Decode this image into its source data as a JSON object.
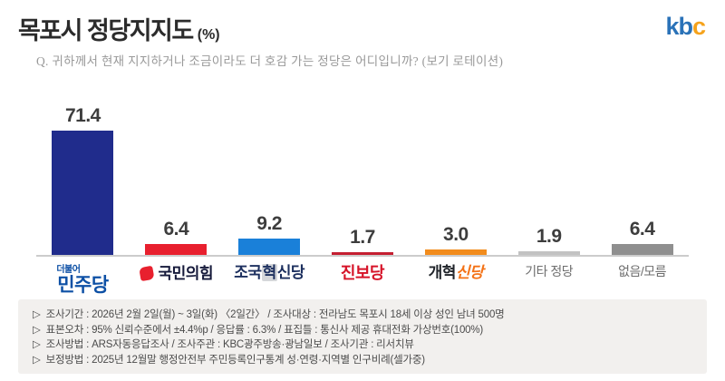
{
  "header": {
    "title": "목포시 정당지지도",
    "unit": "(%)",
    "logo_letters": [
      {
        "char": "k",
        "color": "#2a72b8"
      },
      {
        "char": "b",
        "color": "#2a72b8"
      },
      {
        "char": "c",
        "color": "#f5a21b"
      }
    ]
  },
  "question": "Q. 귀하께서 현재 지지하거나 조금이라도 더 호감 가는 정당은 어디입니까? (보기 로테이션)",
  "chart_data": {
    "type": "bar",
    "title": "목포시 정당지지도 (%)",
    "categories": [
      "더불어민주당",
      "국민의힘",
      "조국혁신당",
      "진보당",
      "개혁신당",
      "기타 정당",
      "없음/모름"
    ],
    "values": [
      71.4,
      6.4,
      9.2,
      1.7,
      3.0,
      1.9,
      6.4
    ],
    "value_labels": [
      "71.4",
      "6.4",
      "9.2",
      "1.7",
      "3.0",
      "1.9",
      "6.4"
    ],
    "bar_colors": [
      "#202c8c",
      "#e8202e",
      "#1a80d9",
      "#c41f31",
      "#f28c1d",
      "#c2c2c2",
      "#8f8f8f"
    ],
    "ylim": [
      0,
      80
    ],
    "grid": false,
    "legend": "none"
  },
  "bars": [
    {
      "value": "71.4",
      "color": "#202c8c",
      "pre_label": "더불어",
      "label_parts": [
        {
          "text": "민주당",
          "color": "#0d50a5"
        }
      ],
      "label_size": 21,
      "label_weight": 800
    },
    {
      "value": "6.4",
      "color": "#e8202e",
      "icon": "ppp-logo",
      "icon_color": "#e8202e",
      "label_parts": [
        {
          "text": "국민의힘",
          "color": "#15193a"
        }
      ],
      "label_size": 17,
      "label_weight": 800
    },
    {
      "value": "9.2",
      "color": "#1a80d9",
      "label_parts": [
        {
          "text": "조국",
          "color": "#1c2f5e"
        },
        {
          "text": "혁",
          "color": "#1c2f5e",
          "bg": "#d5d7da"
        },
        {
          "text": "신당",
          "color": "#1c2f5e"
        }
      ],
      "label_size": 17,
      "label_weight": 800
    },
    {
      "value": "1.7",
      "color": "#c41f31",
      "label_parts": [
        {
          "text": "진보당",
          "color": "#d61328"
        }
      ],
      "label_size": 18,
      "label_weight": 800
    },
    {
      "value": "3.0",
      "color": "#f28c1d",
      "label_parts": [
        {
          "text": "개혁",
          "color": "#20242a"
        },
        {
          "text": "신당",
          "color": "#f47216",
          "italic": true
        }
      ],
      "label_size": 17,
      "label_weight": 800
    },
    {
      "value": "1.9",
      "color": "#c2c2c2",
      "label_parts": [
        {
          "text": "기타 정당",
          "color": "#6e6e6e"
        }
      ],
      "label_size": 14,
      "label_weight": 400
    },
    {
      "value": "6.4",
      "color": "#8f8f8f",
      "label_parts": [
        {
          "text": "없음/모름",
          "color": "#6e6e6e"
        }
      ],
      "label_size": 14,
      "label_weight": 400
    }
  ],
  "footer": {
    "bullet": "▷",
    "lines": [
      "조사기간 : 2026년 2월 2일(월) ~ 3일(화) 〈2일간〉 / 조사대상 : 전라남도 목포시 18세 이상 성인 남녀 500명",
      "표본오차 : 95% 신뢰수준에서 ±4.4%p / 응답률 : 6.3% / 표집틀 : 통신사 제공 휴대전화 가상번호(100%)",
      "조사방법 : ARS자동응답조사 / 조사주관 : KBC광주방송·광남일보 / 조사기관 : 리서치뷰",
      "보정방법 : 2025년 12월말 행정안전부 주민등록인구통계 성·연령·지역별 인구비례(셀가중)"
    ]
  }
}
